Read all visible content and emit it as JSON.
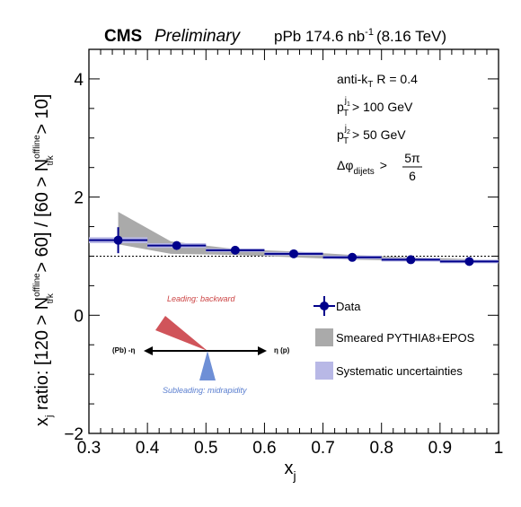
{
  "header": {
    "experiment": "CMS",
    "status": "Preliminary",
    "luminosity_prefix": "pPb 174.6 nb",
    "luminosity_exp": "-1",
    "energy": "(8.16 TeV)"
  },
  "annotations": {
    "jet_algo": "anti-k",
    "jet_algo_sub": "T",
    "jet_radius": "R = 0.4",
    "pt1_sub": "T",
    "pt1_sup": "j",
    "pt1_sup_sub": "1",
    "pt1_cut": "> 100 GeV",
    "pt2_sub": "T",
    "pt2_sup": "j",
    "pt2_sup_sub": "2",
    "pt2_cut": "> 50 GeV",
    "dphi_sub": "dijets",
    "dphi_rel": ">",
    "dphi_num": "5π",
    "dphi_den": "6"
  },
  "diagram": {
    "leading_label": "Leading: backward",
    "subleading_label": "Subleading: midrapidity",
    "left_label": "(Pb) -η",
    "right_label": "η (p)"
  },
  "colors": {
    "data": "#00008b",
    "systematic": "#b8b8e6",
    "model": "#aaaaaa",
    "leading_cone": "#d0545a",
    "subleading_cone": "#6e8fd6"
  },
  "chart_data": {
    "type": "scatter",
    "xlabel": "x",
    "xlabel_sub": "j",
    "ylabel_parts": [
      "x",
      "j",
      " ratio: [120 > N",
      "offline",
      "trk",
      " > 60] / [60 > N",
      "offline",
      "trk",
      " > 10]"
    ],
    "xlim": [
      0.3,
      1.0
    ],
    "ylim": [
      -2,
      4.5
    ],
    "xticks": [
      "0.3",
      "0.4",
      "0.5",
      "0.6",
      "0.7",
      "0.8",
      "0.9",
      "1"
    ],
    "yticks": [
      "−2",
      "0",
      "2",
      "4"
    ],
    "reference_line": 1.0,
    "series": [
      {
        "name": "Data",
        "bins": [
          [
            0.3,
            0.4
          ],
          [
            0.4,
            0.5
          ],
          [
            0.5,
            0.6
          ],
          [
            0.6,
            0.7
          ],
          [
            0.7,
            0.8
          ],
          [
            0.8,
            0.9
          ],
          [
            0.9,
            1.0
          ]
        ],
        "x": [
          0.35,
          0.45,
          0.55,
          0.65,
          0.75,
          0.85,
          0.95
        ],
        "y": [
          1.27,
          1.18,
          1.1,
          1.04,
          0.98,
          0.94,
          0.91
        ],
        "stat_err": [
          0.22,
          0.06,
          0.05,
          0.05,
          0.05,
          0.04,
          0.04
        ],
        "sys_err": [
          0.05,
          0.04,
          0.03,
          0.03,
          0.03,
          0.03,
          0.03
        ]
      },
      {
        "name": "Smeared PYTHIA8+EPOS",
        "x": [
          0.35,
          0.44,
          0.55,
          0.65,
          0.75,
          0.85,
          0.95
        ],
        "y_high": [
          1.75,
          1.25,
          1.12,
          1.08,
          1.02,
          0.98,
          0.95
        ],
        "y_low": [
          1.2,
          1.04,
          1.02,
          0.98,
          0.94,
          0.92,
          0.9
        ]
      },
      {
        "name": "Systematic uncertainties"
      }
    ]
  }
}
